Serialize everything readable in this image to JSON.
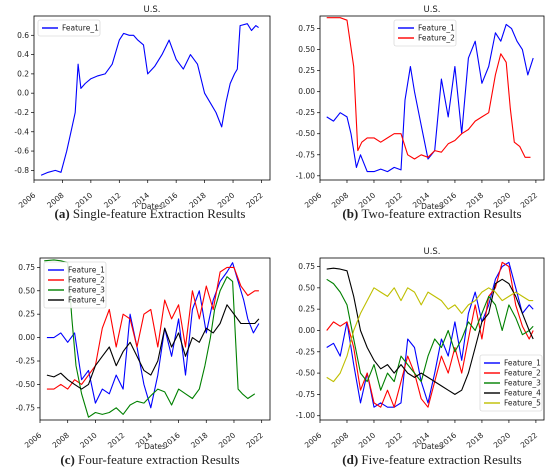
{
  "chart_data": [
    {
      "type": "line",
      "title": "U.S.",
      "xlabel": "Dates",
      "caption_letter": "(a)",
      "caption_text": "Single-feature Extraction Results",
      "xlim": [
        2006.0,
        2022.6
      ],
      "ylim": [
        -0.9,
        0.8
      ],
      "xticks": [
        "2006",
        "2008",
        "2010",
        "2012",
        "2014",
        "2016",
        "2018",
        "2020",
        "2022"
      ],
      "yticks": [
        "-0.8",
        "-0.6",
        "-0.4",
        "-0.2",
        "0.0",
        "0.2",
        "0.4",
        "0.6"
      ],
      "legend": "upper-left",
      "series": [
        {
          "name": "Feature_1",
          "color": "#0000ff",
          "x": [
            2006.5,
            2007.0,
            2007.5,
            2007.9,
            2008.3,
            2008.6,
            2008.9,
            2009.1,
            2009.3,
            2009.6,
            2010.0,
            2010.5,
            2011.0,
            2011.5,
            2012.0,
            2012.3,
            2012.7,
            2013.0,
            2013.3,
            2013.7,
            2014.0,
            2014.5,
            2015.0,
            2015.5,
            2016.0,
            2016.5,
            2017.0,
            2017.5,
            2018.0,
            2018.4,
            2018.8,
            2019.2,
            2019.5,
            2019.8,
            2020.1,
            2020.3,
            2020.5,
            2021.0,
            2021.3,
            2021.6,
            2021.8
          ],
          "y": [
            -0.85,
            -0.82,
            -0.8,
            -0.82,
            -0.6,
            -0.4,
            -0.2,
            0.3,
            0.05,
            0.1,
            0.15,
            0.18,
            0.2,
            0.3,
            0.55,
            0.62,
            0.6,
            0.6,
            0.55,
            0.5,
            0.2,
            0.28,
            0.4,
            0.55,
            0.35,
            0.25,
            0.4,
            0.3,
            0.0,
            -0.1,
            -0.2,
            -0.35,
            -0.1,
            0.1,
            0.2,
            0.25,
            0.7,
            0.72,
            0.65,
            0.7,
            0.68
          ]
        }
      ]
    },
    {
      "type": "line",
      "title": "U.S.",
      "xlabel": "Dates",
      "caption_letter": "(b)",
      "caption_text": "Two-feature extraction Results",
      "xlim": [
        2006.0,
        2022.6
      ],
      "ylim": [
        -1.05,
        0.9
      ],
      "xticks": [
        "2006",
        "2008",
        "2010",
        "2012",
        "2014",
        "2016",
        "2018",
        "2020",
        "2022"
      ],
      "yticks": [
        "-1.00",
        "-0.75",
        "-0.50",
        "-0.25",
        "0.00",
        "0.25",
        "0.50",
        "0.75"
      ],
      "legend": "upper-center",
      "series": [
        {
          "name": "Feature_1",
          "color": "#0000ff",
          "x": [
            2006.5,
            2007.0,
            2007.5,
            2008.0,
            2008.3,
            2008.7,
            2009.0,
            2009.5,
            2010.0,
            2010.5,
            2011.0,
            2011.5,
            2012.0,
            2012.3,
            2012.7,
            2013.0,
            2013.5,
            2014.0,
            2014.5,
            2015.0,
            2015.5,
            2016.0,
            2016.5,
            2017.0,
            2017.5,
            2018.0,
            2018.5,
            2019.0,
            2019.4,
            2019.8,
            2020.2,
            2020.6,
            2021.0,
            2021.4,
            2021.8
          ],
          "y": [
            -0.3,
            -0.35,
            -0.25,
            -0.3,
            -0.5,
            -0.9,
            -0.75,
            -0.95,
            -0.95,
            -0.92,
            -0.95,
            -0.9,
            -0.93,
            -0.1,
            0.3,
            0.0,
            -0.4,
            -0.8,
            -0.7,
            0.15,
            -0.3,
            0.3,
            -0.5,
            0.4,
            0.6,
            0.1,
            0.3,
            0.7,
            0.6,
            0.8,
            0.75,
            0.6,
            0.5,
            0.2,
            0.4
          ]
        },
        {
          "name": "Feature_2",
          "color": "#ff0000",
          "x": [
            2006.5,
            2007.0,
            2007.5,
            2008.0,
            2008.5,
            2008.8,
            2009.1,
            2009.5,
            2010.0,
            2010.5,
            2011.0,
            2011.5,
            2012.0,
            2012.5,
            2013.0,
            2013.5,
            2014.0,
            2014.5,
            2015.0,
            2015.5,
            2016.0,
            2016.5,
            2017.0,
            2017.5,
            2018.0,
            2018.5,
            2019.0,
            2019.4,
            2019.8,
            2020.1,
            2020.4,
            2020.8,
            2021.2,
            2021.6
          ],
          "y": [
            0.88,
            0.88,
            0.88,
            0.85,
            0.3,
            -0.7,
            -0.6,
            -0.55,
            -0.55,
            -0.6,
            -0.55,
            -0.5,
            -0.5,
            -0.75,
            -0.8,
            -0.75,
            -0.78,
            -0.7,
            -0.72,
            -0.62,
            -0.58,
            -0.5,
            -0.45,
            -0.35,
            -0.3,
            -0.25,
            0.2,
            0.45,
            0.35,
            -0.2,
            -0.6,
            -0.65,
            -0.78,
            -0.78
          ]
        }
      ]
    },
    {
      "type": "line",
      "title": "",
      "xlabel": "Dates",
      "caption_letter": "(c)",
      "caption_text": "Four-feature extraction Results",
      "xlim": [
        2006.0,
        2022.6
      ],
      "ylim": [
        -0.88,
        0.85
      ],
      "xticks": [
        "2006",
        "2008",
        "2010",
        "2012",
        "2014",
        "2016",
        "2018",
        "2020",
        "2022"
      ],
      "yticks": [
        "-0.75",
        "-0.50",
        "-0.25",
        "0.00",
        "0.25",
        "0.50",
        "0.75"
      ],
      "legend": "upper-left",
      "series": [
        {
          "name": "Feature_1",
          "color": "#0000ff",
          "x": [
            2006.5,
            2007.0,
            2007.5,
            2008.0,
            2008.5,
            2009.0,
            2009.5,
            2010.0,
            2010.5,
            2011.0,
            2011.5,
            2012.0,
            2012.5,
            2013.0,
            2013.5,
            2014.0,
            2014.5,
            2015.0,
            2015.5,
            2016.0,
            2016.5,
            2017.0,
            2017.5,
            2018.0,
            2018.5,
            2019.0,
            2019.5,
            2019.9,
            2020.3,
            2020.7,
            2021.0,
            2021.4,
            2021.8
          ],
          "y": [
            0.0,
            0.0,
            0.05,
            -0.05,
            0.05,
            -0.45,
            -0.35,
            -0.7,
            -0.55,
            -0.6,
            -0.4,
            -0.55,
            0.25,
            -0.1,
            -0.5,
            -0.75,
            -0.4,
            0.1,
            -0.2,
            0.2,
            -0.4,
            0.3,
            0.5,
            0.05,
            0.4,
            0.6,
            0.7,
            0.8,
            0.6,
            0.4,
            0.2,
            0.05,
            0.15
          ]
        },
        {
          "name": "Feature_2",
          "color": "#ff0000",
          "x": [
            2006.5,
            2007.0,
            2007.5,
            2008.0,
            2008.5,
            2009.0,
            2009.5,
            2010.0,
            2010.5,
            2011.0,
            2011.5,
            2012.0,
            2012.5,
            2013.0,
            2013.5,
            2014.0,
            2014.5,
            2015.0,
            2015.5,
            2016.0,
            2016.5,
            2017.0,
            2017.5,
            2018.0,
            2018.5,
            2019.0,
            2019.5,
            2020.0,
            2020.5,
            2021.0,
            2021.5,
            2021.8
          ],
          "y": [
            -0.55,
            -0.55,
            -0.5,
            -0.55,
            -0.45,
            -0.5,
            -0.4,
            -0.3,
            0.1,
            0.3,
            -0.1,
            0.25,
            0.2,
            -0.1,
            0.25,
            0.3,
            -0.1,
            0.4,
            0.2,
            0.35,
            -0.1,
            0.5,
            0.2,
            0.55,
            0.3,
            0.7,
            0.75,
            0.75,
            0.55,
            0.45,
            0.5,
            0.5
          ]
        },
        {
          "name": "Feature_3",
          "color": "#008000",
          "x": [
            2006.3,
            2007.0,
            2007.5,
            2008.0,
            2008.3,
            2008.6,
            2009.0,
            2009.5,
            2010.0,
            2010.5,
            2011.0,
            2011.5,
            2012.0,
            2012.5,
            2013.0,
            2013.5,
            2014.0,
            2014.5,
            2015.0,
            2015.5,
            2016.0,
            2016.5,
            2017.0,
            2017.5,
            2017.9,
            2018.3,
            2018.6,
            2019.0,
            2019.5,
            2019.9,
            2020.3,
            2020.6,
            2021.0,
            2021.5
          ],
          "y": [
            0.82,
            0.83,
            0.82,
            0.8,
            0.2,
            -0.3,
            -0.6,
            -0.85,
            -0.8,
            -0.82,
            -0.8,
            -0.75,
            -0.82,
            -0.72,
            -0.68,
            -0.7,
            -0.62,
            -0.55,
            -0.58,
            -0.72,
            -0.55,
            -0.6,
            -0.65,
            -0.55,
            -0.3,
            0.0,
            0.3,
            0.5,
            0.65,
            0.6,
            -0.55,
            -0.6,
            -0.65,
            -0.6
          ]
        },
        {
          "name": "Feature_4",
          "color": "#000000",
          "x": [
            2006.5,
            2007.0,
            2007.5,
            2008.0,
            2008.5,
            2009.0,
            2009.5,
            2010.0,
            2010.5,
            2011.0,
            2011.5,
            2012.0,
            2012.5,
            2013.0,
            2013.5,
            2014.0,
            2014.5,
            2015.0,
            2015.5,
            2016.0,
            2016.5,
            2017.0,
            2017.5,
            2018.0,
            2018.5,
            2019.0,
            2019.5,
            2020.0,
            2020.5,
            2021.0,
            2021.5,
            2021.8
          ],
          "y": [
            -0.4,
            -0.42,
            -0.38,
            -0.45,
            -0.5,
            -0.55,
            -0.5,
            -0.3,
            -0.2,
            -0.1,
            -0.3,
            -0.15,
            -0.05,
            -0.2,
            -0.35,
            -0.4,
            -0.25,
            0.1,
            -0.1,
            0.05,
            -0.2,
            0.0,
            -0.05,
            0.1,
            0.05,
            0.15,
            0.35,
            0.25,
            0.15,
            0.15,
            0.15,
            0.2
          ]
        }
      ]
    },
    {
      "type": "line",
      "title": "U.S.",
      "xlabel": "Dates",
      "caption_letter": "(d)",
      "caption_text": "Five-feature extraction Results",
      "xlim": [
        2006.0,
        2022.6
      ],
      "ylim": [
        -1.05,
        0.85
      ],
      "xticks": [
        "2006",
        "2008",
        "2010",
        "2012",
        "2014",
        "2016",
        "2018",
        "2020",
        "2022"
      ],
      "yticks": [
        "-1.00",
        "-0.75",
        "-0.50",
        "-0.25",
        "0.00",
        "0.25",
        "0.50",
        "0.75"
      ],
      "legend": "lower-right",
      "series": [
        {
          "name": "Feature_1",
          "color": "#0000ff",
          "x": [
            2006.5,
            2007.0,
            2007.5,
            2008.0,
            2008.5,
            2009.0,
            2009.5,
            2010.0,
            2010.5,
            2011.0,
            2011.5,
            2012.0,
            2012.5,
            2013.0,
            2013.5,
            2014.0,
            2014.5,
            2015.0,
            2015.5,
            2016.0,
            2016.5,
            2017.0,
            2017.5,
            2018.0,
            2018.5,
            2019.0,
            2019.5,
            2020.0,
            2020.5,
            2021.0,
            2021.5,
            2021.8
          ],
          "y": [
            -0.2,
            -0.15,
            -0.3,
            0.1,
            -0.4,
            -0.85,
            -0.5,
            -0.9,
            -0.85,
            -0.9,
            -0.9,
            -0.85,
            -0.1,
            -0.2,
            -0.6,
            -0.85,
            -0.5,
            -0.1,
            -0.3,
            0.1,
            -0.35,
            0.2,
            0.45,
            0.1,
            0.3,
            0.6,
            0.75,
            0.8,
            0.5,
            0.2,
            0.3,
            0.25
          ]
        },
        {
          "name": "Feature_2",
          "color": "#ff0000",
          "x": [
            2006.5,
            2007.0,
            2007.5,
            2008.0,
            2008.5,
            2009.0,
            2009.5,
            2010.0,
            2010.5,
            2011.0,
            2011.5,
            2012.0,
            2012.5,
            2013.0,
            2013.5,
            2014.0,
            2014.5,
            2015.0,
            2015.5,
            2016.0,
            2016.5,
            2017.0,
            2017.5,
            2018.0,
            2018.5,
            2019.0,
            2019.5,
            2020.0,
            2020.5,
            2021.0,
            2021.5,
            2021.8
          ],
          "y": [
            0.0,
            0.1,
            0.05,
            0.1,
            -0.2,
            -0.7,
            -0.5,
            -0.85,
            -0.9,
            -0.7,
            -0.9,
            -0.6,
            -0.3,
            -0.5,
            -0.8,
            -0.9,
            -0.6,
            -0.3,
            -0.5,
            -0.2,
            -0.5,
            -0.1,
            0.3,
            -0.1,
            0.4,
            0.5,
            0.8,
            0.75,
            0.3,
            0.05,
            -0.1,
            0.0
          ]
        },
        {
          "name": "Feature_3",
          "color": "#008000",
          "x": [
            2006.5,
            2007.0,
            2007.5,
            2008.0,
            2008.5,
            2009.0,
            2009.5,
            2010.0,
            2010.5,
            2011.0,
            2011.5,
            2012.0,
            2012.5,
            2013.0,
            2013.5,
            2014.0,
            2014.5,
            2015.0,
            2015.5,
            2016.0,
            2016.5,
            2017.0,
            2017.5,
            2018.0,
            2018.5,
            2019.0,
            2019.5,
            2020.0,
            2020.5,
            2021.0,
            2021.5,
            2021.8
          ],
          "y": [
            0.6,
            0.55,
            0.45,
            0.3,
            -0.1,
            -0.5,
            -0.6,
            -0.4,
            -0.7,
            -0.5,
            -0.6,
            -0.3,
            -0.4,
            -0.5,
            -0.6,
            -0.3,
            -0.1,
            -0.2,
            0.0,
            -0.25,
            -0.1,
            0.1,
            0.0,
            0.2,
            0.4,
            0.3,
            0.0,
            0.3,
            0.15,
            -0.05,
            0.0,
            0.05
          ]
        },
        {
          "name": "Feature_4",
          "color": "#000000",
          "x": [
            2006.5,
            2007.0,
            2007.5,
            2008.0,
            2008.5,
            2009.0,
            2009.5,
            2010.0,
            2010.5,
            2011.0,
            2011.5,
            2012.0,
            2012.5,
            2013.0,
            2013.5,
            2014.0,
            2014.5,
            2015.0,
            2015.5,
            2016.0,
            2016.5,
            2017.0,
            2017.5,
            2018.0,
            2018.5,
            2019.0,
            2019.5,
            2020.0,
            2020.5,
            2021.0,
            2021.5,
            2021.8
          ],
          "y": [
            0.72,
            0.73,
            0.72,
            0.7,
            0.4,
            0.0,
            -0.2,
            -0.35,
            -0.45,
            -0.4,
            -0.5,
            -0.4,
            -0.5,
            -0.55,
            -0.5,
            -0.55,
            -0.6,
            -0.65,
            -0.7,
            -0.75,
            -0.7,
            -0.5,
            -0.2,
            0.1,
            0.2,
            0.55,
            0.6,
            0.55,
            0.4,
            0.2,
            0.0,
            -0.1
          ]
        },
        {
          "name": "Feature_5",
          "color": "#bfbf00",
          "x": [
            2006.5,
            2007.0,
            2007.5,
            2008.0,
            2008.5,
            2009.0,
            2009.5,
            2010.0,
            2010.5,
            2011.0,
            2011.5,
            2012.0,
            2012.5,
            2013.0,
            2013.5,
            2014.0,
            2014.5,
            2015.0,
            2015.5,
            2016.0,
            2016.5,
            2017.0,
            2017.5,
            2018.0,
            2018.5,
            2019.0,
            2019.5,
            2020.0,
            2020.5,
            2021.0,
            2021.5,
            2021.8
          ],
          "y": [
            -0.55,
            -0.6,
            -0.5,
            -0.3,
            0.0,
            0.2,
            0.35,
            0.5,
            0.45,
            0.4,
            0.5,
            0.35,
            0.5,
            0.45,
            0.3,
            0.45,
            0.4,
            0.35,
            0.25,
            0.3,
            0.2,
            0.3,
            0.35,
            0.45,
            0.5,
            0.45,
            0.35,
            0.4,
            0.45,
            0.4,
            0.35,
            0.35
          ]
        }
      ]
    }
  ]
}
